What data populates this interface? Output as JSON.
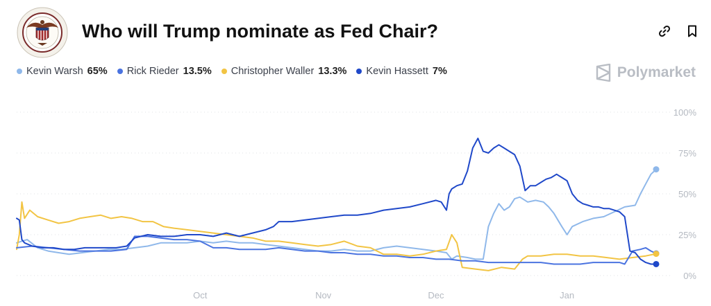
{
  "header": {
    "title": "Who will Trump nominate as Fed Chair?",
    "logo_icon": "federal-reserve-seal-icon",
    "link_icon": "link-icon",
    "bookmark_icon": "bookmark-icon"
  },
  "brand": {
    "name": "Polymarket",
    "icon": "polymarket-logo-icon"
  },
  "legend": [
    {
      "name": "Kevin Warsh",
      "value": "65%",
      "color": "#8fb8ea"
    },
    {
      "name": "Rick Rieder",
      "value": "13.5%",
      "color": "#4a73e0"
    },
    {
      "name": "Christopher Waller",
      "value": "13.3%",
      "color": "#f2c443"
    },
    {
      "name": "Kevin Hassett",
      "value": "7%",
      "color": "#1f48c9"
    }
  ],
  "chart_data": {
    "type": "line",
    "x_ticks": [
      "Oct",
      "Nov",
      "Dec",
      "Jan"
    ],
    "y_ticks": [
      "0%",
      "25%",
      "50%",
      "75%",
      "100%"
    ],
    "ylim": [
      0,
      100
    ],
    "grid": true,
    "legend_position": "top-left",
    "series": [
      {
        "name": "Kevin Warsh",
        "color": "#8fb8ea",
        "points": [
          [
            0,
            20
          ],
          [
            4,
            22
          ],
          [
            8,
            17
          ],
          [
            12,
            15
          ],
          [
            16,
            14
          ],
          [
            20,
            13
          ],
          [
            25,
            14
          ],
          [
            30,
            15
          ],
          [
            35,
            16
          ],
          [
            40,
            16
          ],
          [
            45,
            17
          ],
          [
            50,
            18
          ],
          [
            55,
            20
          ],
          [
            60,
            20
          ],
          [
            65,
            20
          ],
          [
            70,
            21
          ],
          [
            75,
            20
          ],
          [
            80,
            21
          ],
          [
            85,
            20
          ],
          [
            90,
            20
          ],
          [
            95,
            19
          ],
          [
            100,
            18
          ],
          [
            105,
            17
          ],
          [
            110,
            16
          ],
          [
            115,
            15
          ],
          [
            120,
            15
          ],
          [
            125,
            16
          ],
          [
            130,
            15
          ],
          [
            135,
            15
          ],
          [
            140,
            17
          ],
          [
            145,
            18
          ],
          [
            150,
            17
          ],
          [
            155,
            16
          ],
          [
            160,
            15
          ],
          [
            164,
            14
          ],
          [
            166,
            10
          ],
          [
            168,
            12
          ],
          [
            172,
            11
          ],
          [
            175,
            10
          ],
          [
            178,
            10
          ],
          [
            180,
            30
          ],
          [
            182,
            38
          ],
          [
            184,
            44
          ],
          [
            186,
            40
          ],
          [
            188,
            42
          ],
          [
            190,
            47
          ],
          [
            192,
            48
          ],
          [
            195,
            45
          ],
          [
            198,
            46
          ],
          [
            201,
            45
          ],
          [
            203,
            42
          ],
          [
            205,
            38
          ],
          [
            208,
            30
          ],
          [
            210,
            25
          ],
          [
            212,
            30
          ],
          [
            216,
            33
          ],
          [
            220,
            35
          ],
          [
            224,
            36
          ],
          [
            228,
            39
          ],
          [
            232,
            42
          ],
          [
            236,
            43
          ],
          [
            238,
            50
          ],
          [
            240,
            56
          ],
          [
            242,
            62
          ],
          [
            244,
            65
          ]
        ]
      },
      {
        "name": "Rick Rieder",
        "color": "#4a73e0",
        "points": [
          [
            0,
            17
          ],
          [
            6,
            18
          ],
          [
            12,
            17
          ],
          [
            18,
            16
          ],
          [
            24,
            15
          ],
          [
            30,
            15
          ],
          [
            36,
            15
          ],
          [
            42,
            16
          ],
          [
            45,
            24
          ],
          [
            50,
            24
          ],
          [
            55,
            23
          ],
          [
            60,
            22
          ],
          [
            65,
            22
          ],
          [
            70,
            21
          ],
          [
            75,
            17
          ],
          [
            80,
            17
          ],
          [
            85,
            16
          ],
          [
            90,
            16
          ],
          [
            95,
            16
          ],
          [
            100,
            17
          ],
          [
            105,
            16
          ],
          [
            110,
            15
          ],
          [
            115,
            15
          ],
          [
            120,
            14
          ],
          [
            125,
            14
          ],
          [
            130,
            13
          ],
          [
            135,
            13
          ],
          [
            140,
            12
          ],
          [
            145,
            12
          ],
          [
            150,
            11
          ],
          [
            155,
            11
          ],
          [
            160,
            10
          ],
          [
            165,
            10
          ],
          [
            170,
            9
          ],
          [
            175,
            9
          ],
          [
            180,
            8
          ],
          [
            185,
            8
          ],
          [
            190,
            8
          ],
          [
            195,
            8
          ],
          [
            200,
            8
          ],
          [
            205,
            7
          ],
          [
            210,
            7
          ],
          [
            215,
            7
          ],
          [
            220,
            8
          ],
          [
            225,
            8
          ],
          [
            230,
            8
          ],
          [
            232,
            7
          ],
          [
            235,
            15
          ],
          [
            238,
            16
          ],
          [
            240,
            17
          ],
          [
            242,
            15
          ],
          [
            244,
            13.5
          ]
        ]
      },
      {
        "name": "Christopher Waller",
        "color": "#f2c443",
        "points": [
          [
            0,
            16
          ],
          [
            1,
            25
          ],
          [
            2,
            45
          ],
          [
            3,
            35
          ],
          [
            5,
            40
          ],
          [
            8,
            36
          ],
          [
            12,
            34
          ],
          [
            16,
            32
          ],
          [
            20,
            33
          ],
          [
            24,
            35
          ],
          [
            28,
            36
          ],
          [
            32,
            37
          ],
          [
            36,
            35
          ],
          [
            40,
            36
          ],
          [
            44,
            35
          ],
          [
            48,
            33
          ],
          [
            52,
            33
          ],
          [
            56,
            30
          ],
          [
            60,
            29
          ],
          [
            65,
            28
          ],
          [
            70,
            27
          ],
          [
            75,
            26
          ],
          [
            80,
            25
          ],
          [
            85,
            24
          ],
          [
            90,
            23
          ],
          [
            95,
            21
          ],
          [
            100,
            21
          ],
          [
            105,
            20
          ],
          [
            110,
            19
          ],
          [
            115,
            18
          ],
          [
            120,
            19
          ],
          [
            125,
            21
          ],
          [
            130,
            18
          ],
          [
            135,
            17
          ],
          [
            140,
            13
          ],
          [
            145,
            13
          ],
          [
            150,
            12
          ],
          [
            155,
            13
          ],
          [
            160,
            15
          ],
          [
            164,
            16
          ],
          [
            166,
            25
          ],
          [
            168,
            20
          ],
          [
            170,
            5
          ],
          [
            175,
            4
          ],
          [
            180,
            3
          ],
          [
            185,
            5
          ],
          [
            190,
            4
          ],
          [
            193,
            10
          ],
          [
            195,
            12
          ],
          [
            200,
            12
          ],
          [
            205,
            13
          ],
          [
            210,
            13
          ],
          [
            215,
            12
          ],
          [
            220,
            12
          ],
          [
            225,
            11
          ],
          [
            230,
            10
          ],
          [
            235,
            11
          ],
          [
            240,
            12
          ],
          [
            244,
            13.3
          ]
        ]
      },
      {
        "name": "Kevin Hassett",
        "color": "#1f48c9",
        "points": [
          [
            0,
            35
          ],
          [
            1,
            34
          ],
          [
            2,
            22
          ],
          [
            3,
            20
          ],
          [
            6,
            18
          ],
          [
            10,
            17
          ],
          [
            14,
            17
          ],
          [
            18,
            16
          ],
          [
            22,
            16
          ],
          [
            26,
            17
          ],
          [
            30,
            17
          ],
          [
            34,
            17
          ],
          [
            38,
            17
          ],
          [
            42,
            18
          ],
          [
            45,
            23
          ],
          [
            50,
            25
          ],
          [
            55,
            24
          ],
          [
            60,
            24
          ],
          [
            65,
            25
          ],
          [
            70,
            25
          ],
          [
            75,
            24
          ],
          [
            80,
            26
          ],
          [
            85,
            24
          ],
          [
            90,
            26
          ],
          [
            95,
            28
          ],
          [
            98,
            30
          ],
          [
            100,
            33
          ],
          [
            105,
            33
          ],
          [
            110,
            34
          ],
          [
            115,
            35
          ],
          [
            120,
            36
          ],
          [
            125,
            37
          ],
          [
            130,
            37
          ],
          [
            135,
            38
          ],
          [
            140,
            40
          ],
          [
            145,
            41
          ],
          [
            150,
            42
          ],
          [
            155,
            44
          ],
          [
            160,
            46
          ],
          [
            162,
            45
          ],
          [
            164,
            40
          ],
          [
            165,
            50
          ],
          [
            166,
            53
          ],
          [
            168,
            55
          ],
          [
            170,
            56
          ],
          [
            172,
            64
          ],
          [
            174,
            78
          ],
          [
            176,
            84
          ],
          [
            178,
            76
          ],
          [
            180,
            75
          ],
          [
            182,
            78
          ],
          [
            184,
            80
          ],
          [
            186,
            78
          ],
          [
            188,
            76
          ],
          [
            190,
            74
          ],
          [
            192,
            67
          ],
          [
            194,
            52
          ],
          [
            196,
            55
          ],
          [
            198,
            55
          ],
          [
            200,
            57
          ],
          [
            202,
            59
          ],
          [
            204,
            60
          ],
          [
            206,
            62
          ],
          [
            208,
            60
          ],
          [
            210,
            58
          ],
          [
            212,
            50
          ],
          [
            214,
            46
          ],
          [
            216,
            44
          ],
          [
            218,
            43
          ],
          [
            220,
            42
          ],
          [
            222,
            42
          ],
          [
            224,
            41
          ],
          [
            226,
            41
          ],
          [
            228,
            40
          ],
          [
            230,
            39
          ],
          [
            232,
            36
          ],
          [
            234,
            15
          ],
          [
            236,
            14
          ],
          [
            238,
            10
          ],
          [
            240,
            8
          ],
          [
            242,
            7
          ],
          [
            244,
            7
          ]
        ]
      }
    ],
    "x_range": [
      0,
      244
    ],
    "x_tick_positions": [
      70,
      117,
      160,
      210
    ]
  }
}
